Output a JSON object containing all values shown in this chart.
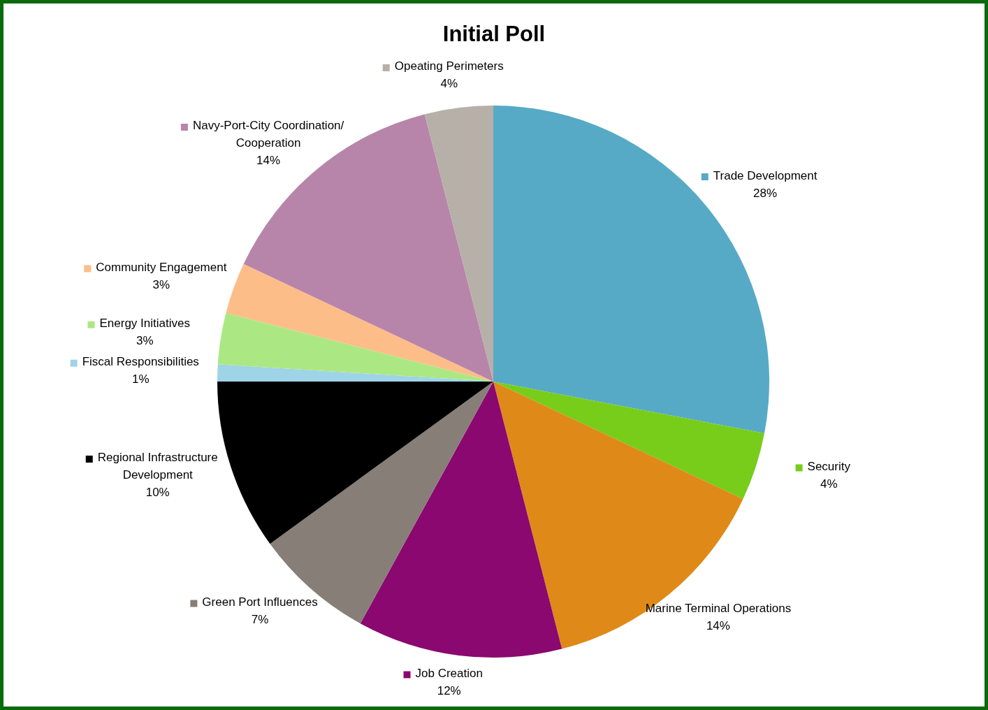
{
  "chart_data": {
    "type": "pie",
    "title": "Initial Poll",
    "categories": [
      "Trade Development",
      "Security",
      "Marine Terminal Operations",
      "Job Creation",
      "Green Port Influences",
      "Regional Infrastructure Development",
      "Fiscal Responsibilities",
      "Energy Initiatives",
      "Community Engagement",
      "Navy-Port-City Coordination/ Cooperation",
      "Opeating Perimeters"
    ],
    "values": [
      28,
      4,
      14,
      12,
      7,
      10,
      1,
      3,
      3,
      14,
      4
    ],
    "value_labels": [
      "28%",
      "4%",
      "14%",
      "12%",
      "7%",
      "10%",
      "1%",
      "3%",
      "3%",
      "14%",
      "4%"
    ],
    "colors": [
      "#57aac5",
      "#77cd1a",
      "#df8a18",
      "#8a0870",
      "#877e77",
      "#000000",
      "#9fd3e8",
      "#abe883",
      "#fdbd88",
      "#b885aa",
      "#b6b0a8"
    ],
    "legend": "top left"
  }
}
